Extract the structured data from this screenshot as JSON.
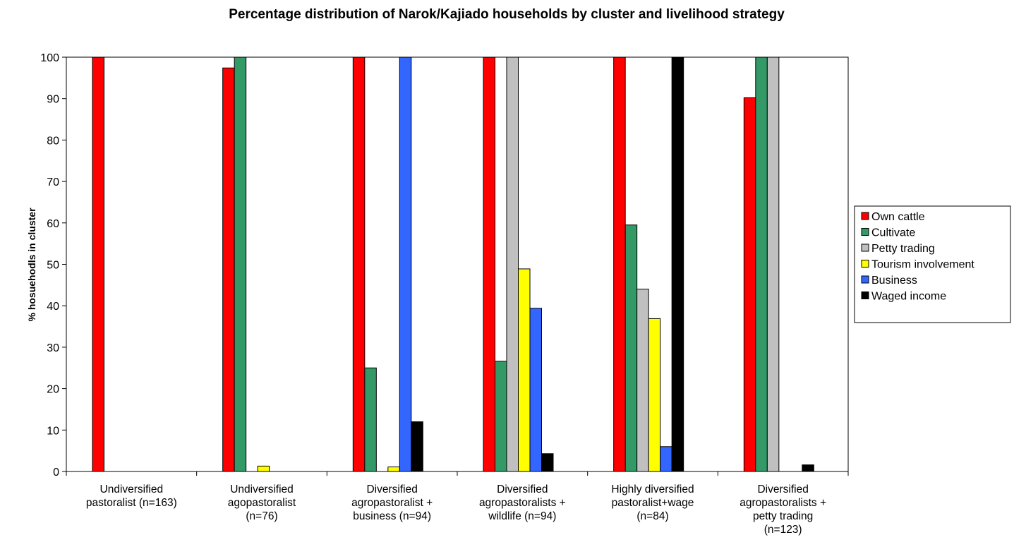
{
  "chart_data": {
    "type": "bar",
    "title": "Percentage distribution of Narok/Kajiado households by cluster and livelihood strategy",
    "xlabel": "",
    "ylabel": "% hosuehodls in cluster",
    "ylim": [
      0,
      100
    ],
    "yticks": [
      0,
      10,
      20,
      30,
      40,
      50,
      60,
      70,
      80,
      90,
      100
    ],
    "grid": false,
    "legend_position": "right",
    "categories": [
      [
        "Undiversified",
        "pastoralist (n=163)"
      ],
      [
        "Undiversified",
        "agopastoralist",
        "(n=76)"
      ],
      [
        "Diversified",
        "agropastoralist +",
        "business (n=94)"
      ],
      [
        "Diversified",
        "agropastoralists +",
        "wildlife (n=94)"
      ],
      [
        "Highly diversified",
        "pastoralist+wage",
        "(n=84)"
      ],
      [
        "Diversified",
        "agropastoralists +",
        "petty trading",
        "(n=123)"
      ]
    ],
    "series": [
      {
        "name": "Own cattle",
        "color": "#ff0000",
        "values": [
          100,
          97.4,
          100,
          100,
          100,
          90.2
        ]
      },
      {
        "name": "Cultivate",
        "color": "#339966",
        "values": [
          0,
          100,
          25,
          26.6,
          59.5,
          100
        ]
      },
      {
        "name": "Petty trading",
        "color": "#c0c0c0",
        "values": [
          0,
          0,
          0,
          100,
          44,
          100
        ]
      },
      {
        "name": "Tourism involvement",
        "color": "#ffff00",
        "values": [
          0,
          1.3,
          1.1,
          48.9,
          36.9,
          0
        ]
      },
      {
        "name": "Business",
        "color": "#3366ff",
        "values": [
          0,
          0,
          100,
          39.4,
          6,
          0
        ]
      },
      {
        "name": "Waged income",
        "color": "#000000",
        "values": [
          0,
          0,
          12,
          4.3,
          100,
          1.6
        ]
      }
    ]
  }
}
